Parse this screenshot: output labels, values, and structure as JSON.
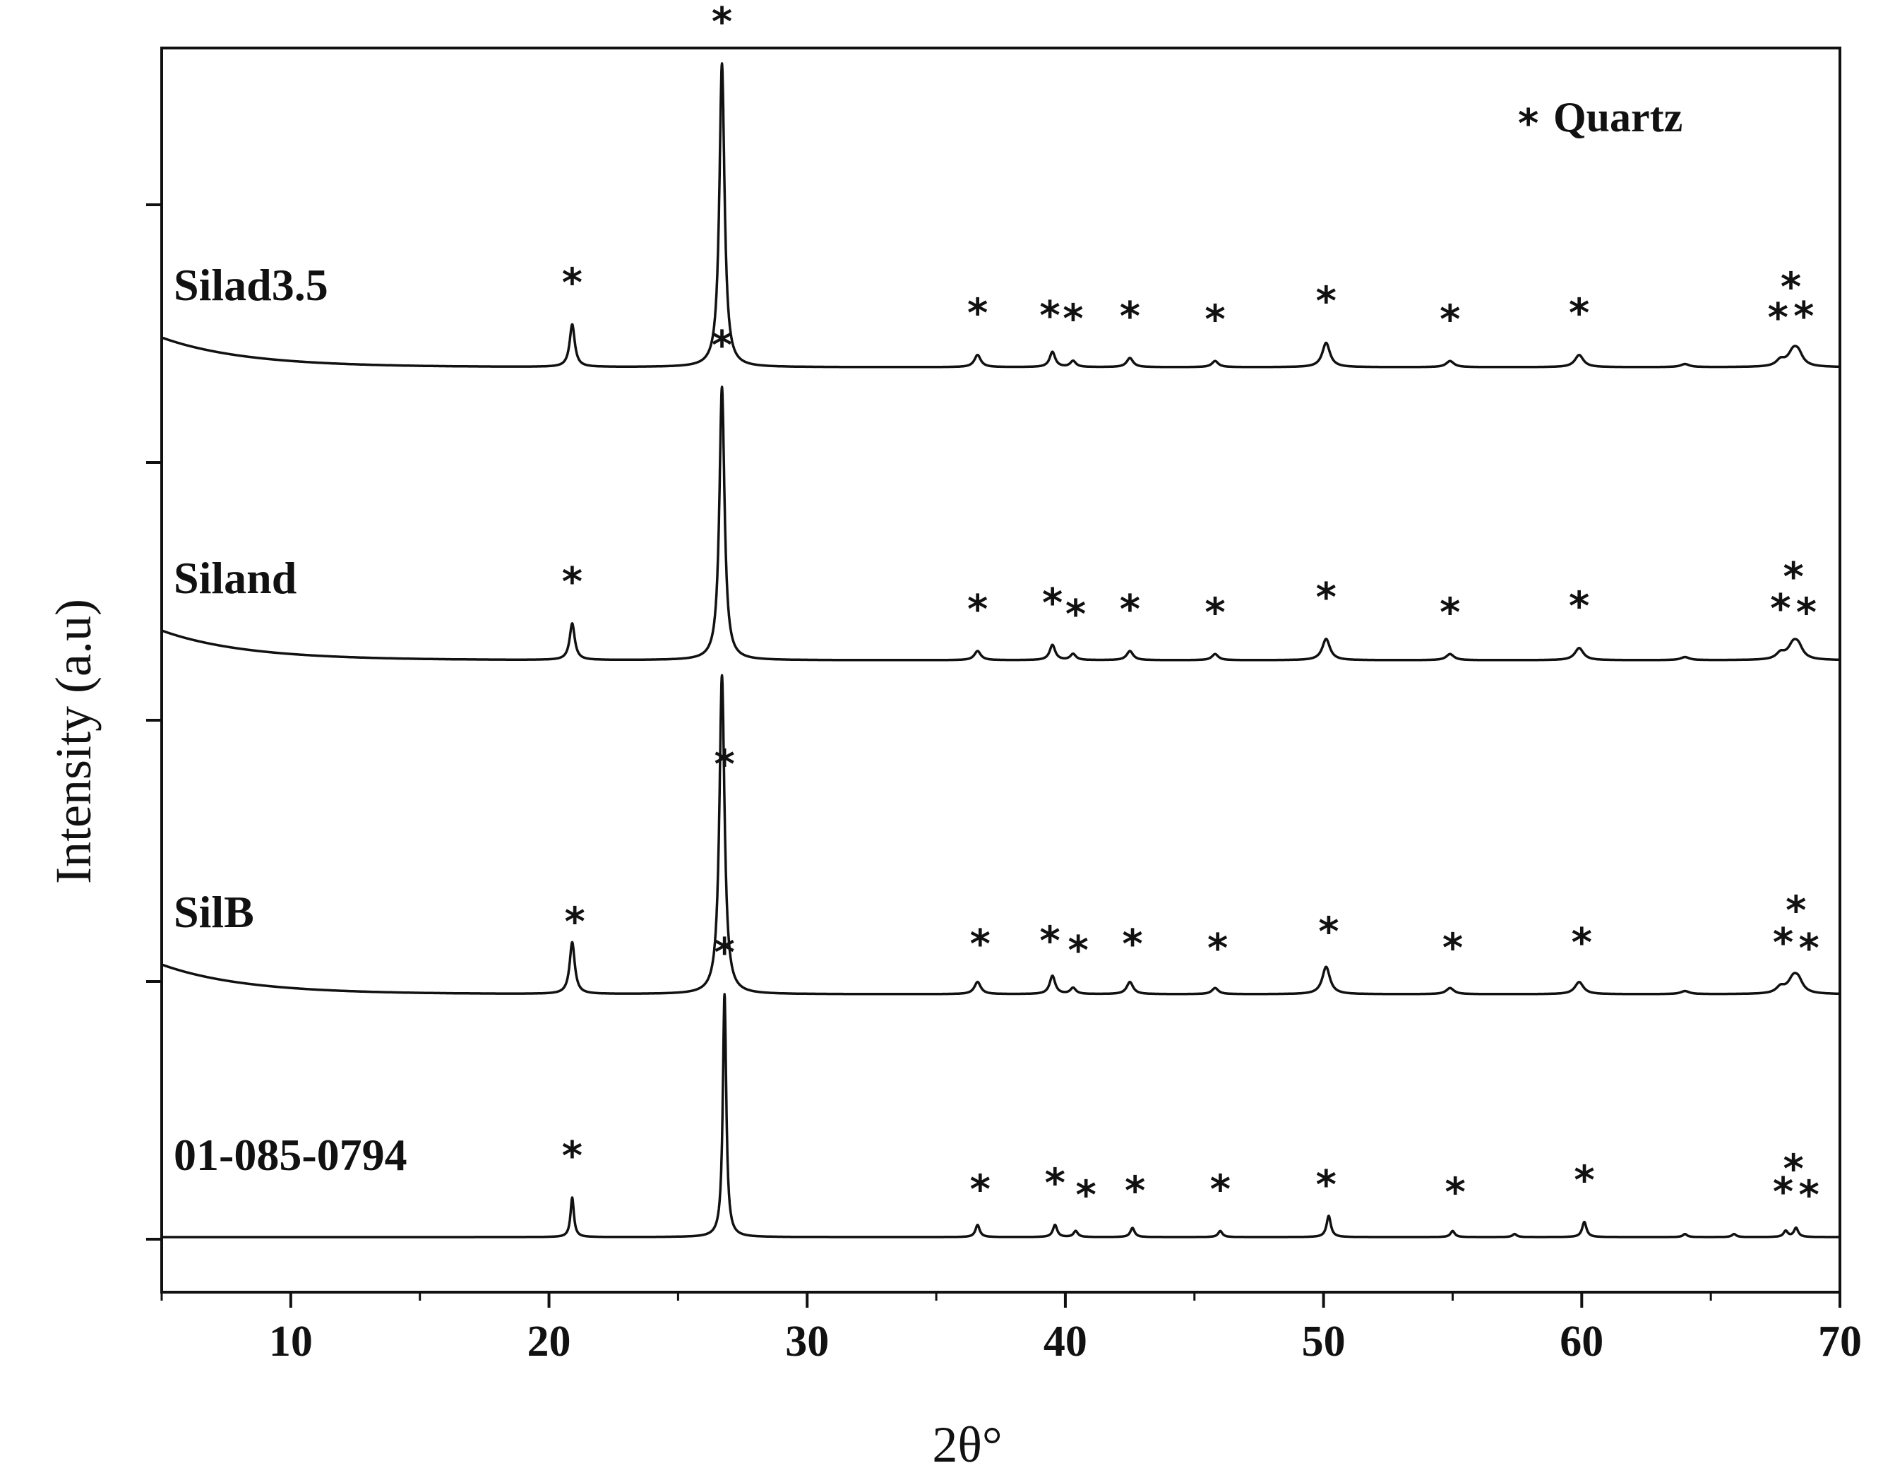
{
  "chart_data": {
    "type": "line",
    "title": "",
    "xlabel": "2θ°",
    "ylabel": "Intensity (a.u)",
    "xlim": [
      5,
      70
    ],
    "xticks": [
      10,
      20,
      30,
      40,
      50,
      60,
      70
    ],
    "grid": false,
    "legend": {
      "marker": "*",
      "label": "Quartz",
      "placement": "top-right"
    },
    "marker_symbol": "*",
    "y_units": "arbitrary, each pattern vertically offset",
    "series": [
      {
        "name": "Silad3.5",
        "offset": 3,
        "amorphous_hump": true,
        "peaks": [
          {
            "x": 20.9,
            "h": 0.14,
            "w": 0.12
          },
          {
            "x": 26.7,
            "h": 1.0,
            "w": 0.12
          },
          {
            "x": 36.6,
            "h": 0.04,
            "w": 0.15
          },
          {
            "x": 39.5,
            "h": 0.05,
            "w": 0.13
          },
          {
            "x": 40.3,
            "h": 0.02,
            "w": 0.13
          },
          {
            "x": 42.5,
            "h": 0.03,
            "w": 0.15
          },
          {
            "x": 45.8,
            "h": 0.02,
            "w": 0.15
          },
          {
            "x": 50.1,
            "h": 0.08,
            "w": 0.18
          },
          {
            "x": 54.9,
            "h": 0.02,
            "w": 0.18
          },
          {
            "x": 59.9,
            "h": 0.04,
            "w": 0.2
          },
          {
            "x": 64.0,
            "h": 0.01,
            "w": 0.2
          },
          {
            "x": 67.7,
            "h": 0.02,
            "w": 0.2
          },
          {
            "x": 68.2,
            "h": 0.05,
            "w": 0.25
          },
          {
            "x": 68.4,
            "h": 0.03,
            "w": 0.2
          }
        ],
        "stars_x": [
          20.9,
          26.7,
          36.6,
          39.4,
          40.3,
          42.5,
          45.8,
          50.1,
          54.9,
          59.9,
          67.6,
          68.1,
          68.6
        ]
      },
      {
        "name": "Siland",
        "offset": 2,
        "amorphous_hump": true,
        "peaks": [
          {
            "x": 20.9,
            "h": 0.12,
            "w": 0.12
          },
          {
            "x": 26.7,
            "h": 0.9,
            "w": 0.12
          },
          {
            "x": 36.6,
            "h": 0.03,
            "w": 0.15
          },
          {
            "x": 39.5,
            "h": 0.05,
            "w": 0.13
          },
          {
            "x": 40.3,
            "h": 0.02,
            "w": 0.13
          },
          {
            "x": 42.5,
            "h": 0.03,
            "w": 0.15
          },
          {
            "x": 45.8,
            "h": 0.02,
            "w": 0.15
          },
          {
            "x": 50.1,
            "h": 0.07,
            "w": 0.18
          },
          {
            "x": 54.9,
            "h": 0.02,
            "w": 0.18
          },
          {
            "x": 59.9,
            "h": 0.04,
            "w": 0.2
          },
          {
            "x": 64.0,
            "h": 0.01,
            "w": 0.2
          },
          {
            "x": 67.7,
            "h": 0.02,
            "w": 0.2
          },
          {
            "x": 68.2,
            "h": 0.05,
            "w": 0.25
          },
          {
            "x": 68.4,
            "h": 0.03,
            "w": 0.2
          }
        ],
        "stars_x": [
          20.9,
          26.7,
          36.6,
          39.5,
          40.4,
          42.5,
          45.8,
          50.1,
          54.9,
          59.9,
          67.7,
          68.2,
          68.7
        ]
      },
      {
        "name": "SilB",
        "offset": 1,
        "amorphous_hump": true,
        "peaks": [
          {
            "x": 20.9,
            "h": 0.17,
            "w": 0.12
          },
          {
            "x": 26.7,
            "h": 1.05,
            "w": 0.12
          },
          {
            "x": 36.6,
            "h": 0.04,
            "w": 0.15
          },
          {
            "x": 39.5,
            "h": 0.06,
            "w": 0.13
          },
          {
            "x": 40.3,
            "h": 0.02,
            "w": 0.13
          },
          {
            "x": 42.5,
            "h": 0.04,
            "w": 0.15
          },
          {
            "x": 45.8,
            "h": 0.02,
            "w": 0.15
          },
          {
            "x": 50.1,
            "h": 0.09,
            "w": 0.18
          },
          {
            "x": 54.9,
            "h": 0.02,
            "w": 0.18
          },
          {
            "x": 59.9,
            "h": 0.04,
            "w": 0.2
          },
          {
            "x": 64.0,
            "h": 0.01,
            "w": 0.2
          },
          {
            "x": 67.7,
            "h": 0.02,
            "w": 0.2
          },
          {
            "x": 68.2,
            "h": 0.05,
            "w": 0.25
          },
          {
            "x": 68.4,
            "h": 0.03,
            "w": 0.2
          }
        ],
        "stars_x": [
          21.0,
          26.8,
          36.7,
          39.4,
          40.5,
          42.6,
          45.9,
          50.2,
          55.0,
          60.0,
          67.8,
          68.3,
          68.8
        ]
      },
      {
        "name": "01-085-0794",
        "offset": 0,
        "amorphous_hump": false,
        "peaks": [
          {
            "x": 20.9,
            "h": 0.13,
            "w": 0.08
          },
          {
            "x": 26.8,
            "h": 0.8,
            "w": 0.08
          },
          {
            "x": 36.6,
            "h": 0.04,
            "w": 0.1
          },
          {
            "x": 39.6,
            "h": 0.04,
            "w": 0.1
          },
          {
            "x": 40.4,
            "h": 0.02,
            "w": 0.1
          },
          {
            "x": 42.6,
            "h": 0.03,
            "w": 0.1
          },
          {
            "x": 46.0,
            "h": 0.02,
            "w": 0.1
          },
          {
            "x": 50.2,
            "h": 0.07,
            "w": 0.1
          },
          {
            "x": 55.0,
            "h": 0.02,
            "w": 0.1
          },
          {
            "x": 57.4,
            "h": 0.01,
            "w": 0.1
          },
          {
            "x": 60.1,
            "h": 0.05,
            "w": 0.1
          },
          {
            "x": 64.0,
            "h": 0.01,
            "w": 0.1
          },
          {
            "x": 65.9,
            "h": 0.01,
            "w": 0.1
          },
          {
            "x": 67.9,
            "h": 0.02,
            "w": 0.1
          },
          {
            "x": 68.3,
            "h": 0.03,
            "w": 0.1
          }
        ],
        "stars_x": [
          20.9,
          26.8,
          36.7,
          39.6,
          40.8,
          42.7,
          46.0,
          50.1,
          55.1,
          60.1,
          67.8,
          68.2,
          68.8
        ]
      }
    ]
  }
}
